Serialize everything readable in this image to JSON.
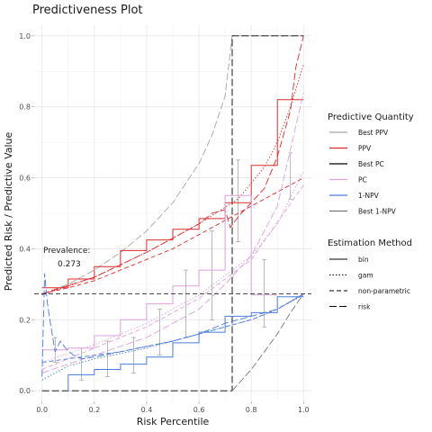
{
  "chart_data": {
    "type": "line",
    "title": "Predictiveness Plot",
    "xlabel": "Risk Percentile",
    "ylabel": "Predicted Risk / Predictive Value",
    "xlim": [
      -0.03,
      1.03
    ],
    "ylim": [
      -0.03,
      1.03
    ],
    "xticks": [
      0.0,
      0.2,
      0.4,
      0.6,
      0.8,
      1.0
    ],
    "yticks": [
      0.0,
      0.2,
      0.4,
      0.6,
      0.8,
      1.0
    ],
    "xtick_labels": [
      "0.0",
      "0.2",
      "0.4",
      "0.6",
      "0.8",
      "1.0"
    ],
    "ytick_labels": [
      "0.0",
      "0.2",
      "0.4",
      "0.6",
      "0.8",
      "1.0"
    ],
    "grid": true,
    "prevalence": 0.273,
    "annotation_lines": [
      "Prevalence:",
      "0.273"
    ],
    "legend": {
      "position": "right",
      "quantity_title": "Predictive Quantity",
      "quantity_entries": [
        {
          "label": "Best PPV",
          "color": "#a6a6a6"
        },
        {
          "label": "PPV",
          "color": "#dd2a2a"
        },
        {
          "label": "Best PC",
          "color": "#000000"
        },
        {
          "label": "PC",
          "color": "#dda0dd"
        },
        {
          "label": "1-NPV",
          "color": "#4a7bdd"
        },
        {
          "label": "Best 1-NPV",
          "color": "#777777"
        }
      ],
      "method_title": "Estimation Method",
      "method_entries": [
        {
          "label": "bin",
          "dash": "solid"
        },
        {
          "label": "gam",
          "dash": "dotted"
        },
        {
          "label": "non-parametric",
          "dash": "dashed"
        },
        {
          "label": "risk",
          "dash": "longdash"
        }
      ]
    },
    "series": [
      {
        "quantity": "Best PPV",
        "method": "risk",
        "color": "#a6a6a6",
        "x": [
          0,
          0.1,
          0.2,
          0.3,
          0.4,
          0.5,
          0.6,
          0.65,
          0.7,
          0.727,
          1.0
        ],
        "y": [
          0.273,
          0.3,
          0.34,
          0.39,
          0.45,
          0.53,
          0.64,
          0.72,
          0.83,
          1.0,
          1.0
        ]
      },
      {
        "quantity": "Best PC",
        "method": "risk",
        "color": "#000000",
        "x": [
          0,
          0.727,
          0.727,
          1.0
        ],
        "y": [
          0,
          0,
          1.0,
          1.0
        ]
      },
      {
        "quantity": "Best 1-NPV",
        "method": "risk",
        "color": "#777777",
        "x": [
          0.727,
          0.8,
          0.85,
          0.9,
          0.95,
          1.0
        ],
        "y": [
          0.0,
          0.06,
          0.11,
          0.16,
          0.22,
          0.273
        ]
      },
      {
        "quantity": "PPV",
        "method": "bin",
        "color": "#dd2a2a",
        "x": [
          0,
          0.1,
          0.1,
          0.2,
          0.2,
          0.3,
          0.3,
          0.4,
          0.4,
          0.5,
          0.5,
          0.6,
          0.6,
          0.7,
          0.7,
          0.8,
          0.8,
          0.9,
          0.9,
          1.0
        ],
        "y": [
          0.29,
          0.29,
          0.315,
          0.315,
          0.35,
          0.35,
          0.395,
          0.395,
          0.425,
          0.425,
          0.455,
          0.455,
          0.485,
          0.485,
          0.53,
          0.53,
          0.635,
          0.635,
          0.82,
          0.82
        ]
      },
      {
        "quantity": "PPV",
        "method": "gam",
        "color": "#dd2a2a",
        "x": [
          0,
          0.2,
          0.4,
          0.6,
          0.75,
          0.85,
          0.9,
          0.95,
          1.0
        ],
        "y": [
          0.27,
          0.32,
          0.39,
          0.47,
          0.54,
          0.63,
          0.7,
          0.8,
          0.92
        ]
      },
      {
        "quantity": "PPV",
        "method": "non-parametric",
        "color": "#dd2a2a",
        "x": [
          0,
          0.1,
          0.2,
          0.3,
          0.4,
          0.5,
          0.6,
          0.7,
          0.8,
          0.9,
          1.0
        ],
        "y": [
          0.273,
          0.29,
          0.31,
          0.34,
          0.37,
          0.4,
          0.44,
          0.48,
          0.52,
          0.56,
          0.6
        ]
      },
      {
        "quantity": "PPV",
        "method": "risk",
        "color": "#dd2a2a",
        "x": [
          0,
          0.2,
          0.4,
          0.5,
          0.6,
          0.65,
          0.7,
          0.72,
          0.75,
          0.8,
          0.85,
          0.9,
          0.95,
          0.97,
          1.0
        ],
        "y": [
          0.273,
          0.32,
          0.39,
          0.43,
          0.47,
          0.5,
          0.51,
          0.46,
          0.49,
          0.53,
          0.57,
          0.66,
          0.79,
          0.91,
          1.0
        ]
      },
      {
        "quantity": "PC",
        "method": "bin",
        "color": "#dda0dd",
        "x": [
          0,
          0.1,
          0.1,
          0.2,
          0.2,
          0.3,
          0.3,
          0.4,
          0.4,
          0.5,
          0.5,
          0.6,
          0.6,
          0.7,
          0.7,
          0.8,
          0.8,
          0.9
        ],
        "y": [
          0.115,
          0.115,
          0.12,
          0.12,
          0.155,
          0.155,
          0.2,
          0.2,
          0.245,
          0.245,
          0.295,
          0.295,
          0.34,
          0.34,
          0.55,
          0.55,
          0.27,
          0.27
        ]
      },
      {
        "quantity": "PC",
        "method": "gam",
        "color": "#dda0dd",
        "x": [
          0,
          0.2,
          0.4,
          0.6,
          0.8,
          0.9,
          1.0
        ],
        "y": [
          0.08,
          0.13,
          0.19,
          0.27,
          0.38,
          0.47,
          0.62
        ]
      },
      {
        "quantity": "PC",
        "method": "non-parametric",
        "color": "#dda0dd",
        "x": [
          0,
          0.2,
          0.4,
          0.6,
          0.8,
          1.0
        ],
        "y": [
          0.06,
          0.12,
          0.18,
          0.26,
          0.37,
          0.58
        ]
      },
      {
        "quantity": "PC",
        "method": "risk",
        "color": "#dda0dd",
        "x": [
          0,
          0.2,
          0.4,
          0.6,
          0.7,
          0.8,
          0.9,
          1.0
        ],
        "y": [
          0.05,
          0.1,
          0.15,
          0.23,
          0.3,
          0.38,
          0.52,
          0.84
        ]
      },
      {
        "quantity": "1-NPV",
        "method": "bin",
        "color": "#4a7bdd",
        "x": [
          0.1,
          0.1,
          0.2,
          0.2,
          0.3,
          0.3,
          0.4,
          0.4,
          0.5,
          0.5,
          0.6,
          0.6,
          0.7,
          0.7,
          0.8,
          0.8,
          0.9,
          0.9,
          1.0
        ],
        "y": [
          0.0,
          0.045,
          0.045,
          0.06,
          0.06,
          0.075,
          0.075,
          0.095,
          0.095,
          0.135,
          0.135,
          0.165,
          0.165,
          0.21,
          0.21,
          0.22,
          0.22,
          0.265,
          0.265
        ]
      },
      {
        "quantity": "1-NPV",
        "method": "gam",
        "color": "#4a7bdd",
        "x": [
          0,
          0.1,
          0.2,
          0.3,
          0.4,
          0.5,
          0.6,
          0.7,
          0.8,
          0.9,
          1.0
        ],
        "y": [
          0.03,
          0.07,
          0.09,
          0.105,
          0.12,
          0.14,
          0.16,
          0.18,
          0.2,
          0.23,
          0.27
        ]
      },
      {
        "quantity": "1-NPV",
        "method": "non-parametric",
        "color": "#4a7bdd",
        "x": [
          0,
          0.1,
          0.2,
          0.3,
          0.4,
          0.5,
          0.6,
          0.7,
          0.8,
          0.9,
          1.0
        ],
        "y": [
          0.08,
          0.09,
          0.1,
          0.11,
          0.125,
          0.14,
          0.16,
          0.18,
          0.2,
          0.23,
          0.273
        ]
      },
      {
        "quantity": "1-NPV",
        "method": "risk",
        "color": "#4a7bdd",
        "x": [
          0,
          0.01,
          0.02,
          0.03,
          0.05,
          0.07,
          0.09,
          0.12,
          0.15,
          0.2,
          0.3,
          0.4,
          0.5,
          0.6,
          0.7,
          0.8,
          0.9,
          1.0
        ],
        "y": [
          0.04,
          0.33,
          0.25,
          0.2,
          0.11,
          0.14,
          0.12,
          0.1,
          0.09,
          0.095,
          0.11,
          0.125,
          0.14,
          0.16,
          0.19,
          0.21,
          0.23,
          0.273
        ]
      }
    ],
    "error_bars": [
      {
        "x": 0.25,
        "low": 0.04,
        "high": 0.14
      },
      {
        "x": 0.35,
        "low": 0.05,
        "high": 0.15
      },
      {
        "x": 0.45,
        "low": 0.1,
        "high": 0.23
      },
      {
        "x": 0.55,
        "low": 0.15,
        "high": 0.34
      },
      {
        "x": 0.65,
        "low": 0.2,
        "high": 0.45
      },
      {
        "x": 0.75,
        "low": 0.42,
        "high": 0.65
      },
      {
        "x": 0.85,
        "low": 0.18,
        "high": 0.37
      },
      {
        "x": 0.95,
        "low": 0.54,
        "high": 0.67
      },
      {
        "x": 0.15,
        "low": 0.03,
        "high": 0.12
      },
      {
        "x": 0.05,
        "low": 0.08,
        "high": 0.15
      }
    ]
  }
}
